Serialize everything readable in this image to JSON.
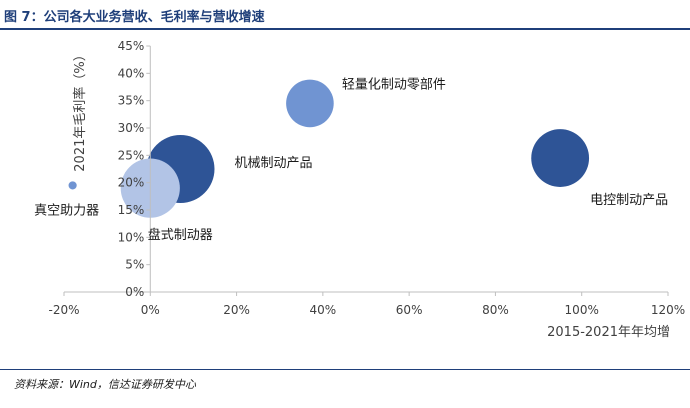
{
  "figure": {
    "title": "图 7：公司各大业务营收、毛利率与营收增速",
    "source": "资料来源：Wind，信达证券研发中心"
  },
  "colors": {
    "title_blue": "#1f3f7a",
    "dark_blue": "#2e5496",
    "mid_blue": "#7094d2",
    "light_blue": "#b2c4e6",
    "axis_gray": "#bfbfbf",
    "tick_text": "#404040"
  },
  "chart_data": {
    "type": "scatter",
    "subtype": "bubble",
    "title": "",
    "xlabel": "2015-2021年年均增",
    "ylabel": "2021年毛利率（%）",
    "xlim": [
      -0.2,
      1.2
    ],
    "ylim": [
      0,
      0.45
    ],
    "x_ticks": [
      -0.2,
      0,
      0.2,
      0.4,
      0.6,
      0.8,
      1.0,
      1.2
    ],
    "x_tick_labels": [
      "-20%",
      "0%",
      "20%",
      "40%",
      "60%",
      "80%",
      "100%",
      "120%"
    ],
    "y_ticks": [
      0,
      0.05,
      0.1,
      0.15,
      0.2,
      0.25,
      0.3,
      0.35,
      0.4,
      0.45
    ],
    "y_tick_labels": [
      "0%",
      "5%",
      "10%",
      "15%",
      "20%",
      "25%",
      "30%",
      "35%",
      "40%",
      "45%"
    ],
    "grid": false,
    "legend": "none",
    "series": [
      {
        "label": "机械制动产品",
        "x": 0.07,
        "y": 0.225,
        "relative_size": 1.0,
        "color": "#2e5496"
      },
      {
        "label": "盘式制动器",
        "x": 0.0,
        "y": 0.19,
        "relative_size": 0.87,
        "color": "#b2c4e6"
      },
      {
        "label": "轻量化制动零部件",
        "x": 0.37,
        "y": 0.345,
        "relative_size": 0.7,
        "color": "#7094d2"
      },
      {
        "label": "电控制动产品",
        "x": 0.95,
        "y": 0.245,
        "relative_size": 0.85,
        "color": "#2e5496"
      },
      {
        "label": "真空助力器",
        "x": -0.18,
        "y": 0.195,
        "relative_size": 0.12,
        "color": "#7094d2"
      }
    ]
  }
}
